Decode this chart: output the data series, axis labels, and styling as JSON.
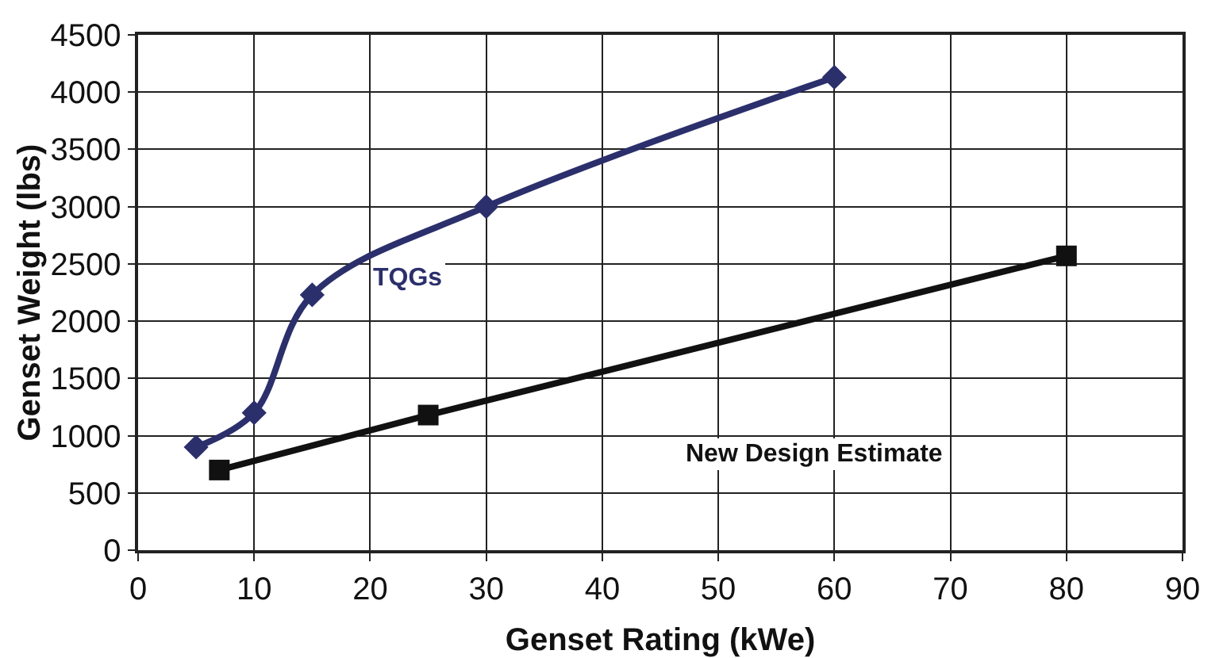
{
  "chart_data": {
    "type": "line",
    "xlabel": "Genset Rating (kWe)",
    "ylabel": "Genset Weight (lbs)",
    "xlim": [
      0,
      90
    ],
    "xticks": [
      0,
      10,
      20,
      30,
      40,
      50,
      60,
      70,
      80,
      90
    ],
    "ylim": [
      0,
      4500
    ],
    "yticks": [
      0,
      500,
      1000,
      1500,
      2000,
      2500,
      3000,
      3500,
      4000,
      4500
    ],
    "grid": true,
    "legend": false,
    "line_style": "solid",
    "series": [
      {
        "name": "TQGs",
        "color": "#2b2f6b",
        "marker": "diamond",
        "x": [
          5,
          10,
          15,
          30,
          60
        ],
        "values": [
          900,
          1200,
          2230,
          3000,
          4130
        ]
      },
      {
        "name": "New Design Estimate",
        "color": "#111111",
        "marker": "square",
        "x": [
          7,
          25,
          80
        ],
        "values": [
          700,
          1180,
          2570
        ]
      }
    ]
  }
}
